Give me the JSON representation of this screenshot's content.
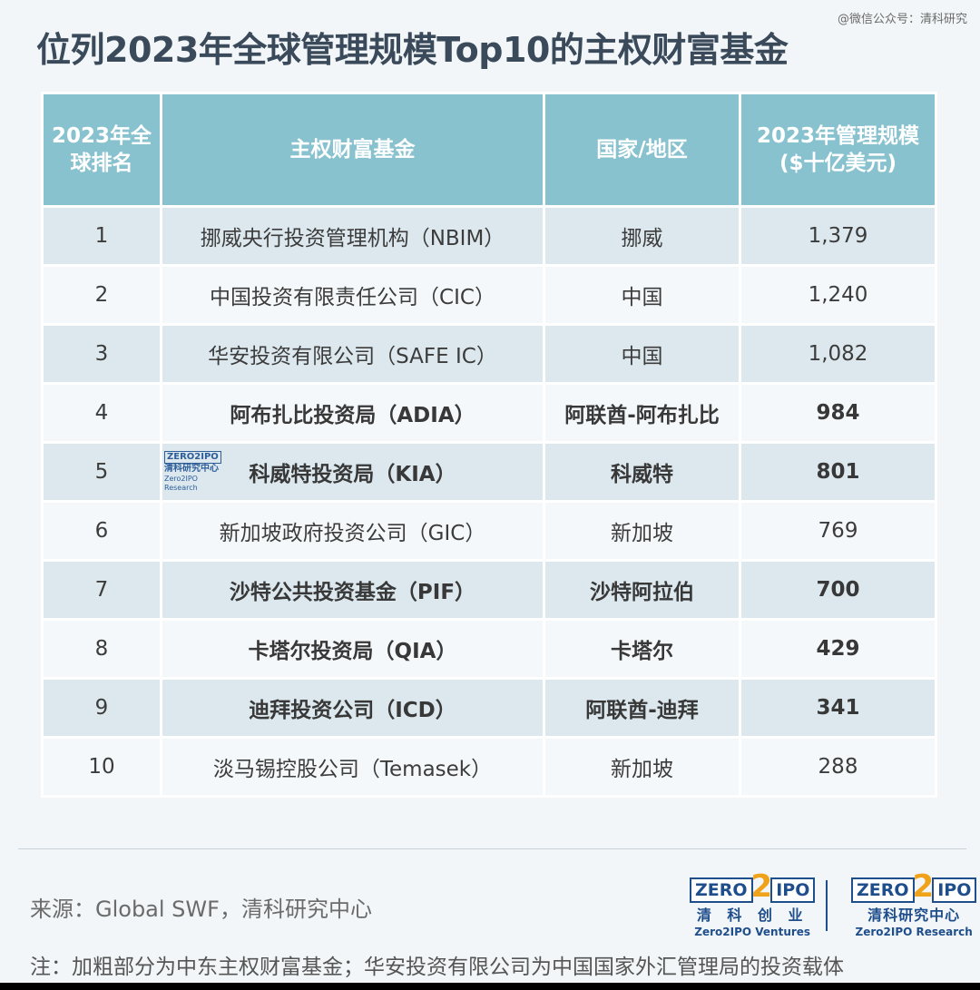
{
  "watermark": "@微信公众号：清科研究",
  "title": "位列2023年全球管理规模Top10的主权财富基金",
  "table": {
    "headers": [
      "2023年全\n球排名",
      "主权财富基金",
      "国家/地区",
      "2023年管理规模\n($十亿美元)"
    ],
    "rows": [
      {
        "rank": "1",
        "fund": "挪威央行投资管理机构（NBIM）",
        "region": "挪威",
        "aum": "1,379",
        "middle_east": false
      },
      {
        "rank": "2",
        "fund": "中国投资有限责任公司（CIC）",
        "region": "中国",
        "aum": "1,240",
        "middle_east": false
      },
      {
        "rank": "3",
        "fund": "华安投资有限公司（SAFE IC）",
        "region": "中国",
        "aum": "1,082",
        "middle_east": false
      },
      {
        "rank": "4",
        "fund": "阿布扎比投资局（ADIA）",
        "region": "阿联酋-阿布扎比",
        "aum": "984",
        "middle_east": true
      },
      {
        "rank": "5",
        "fund": "科威特投资局（KIA）",
        "region": "科威特",
        "aum": "801",
        "middle_east": true
      },
      {
        "rank": "6",
        "fund": "新加坡政府投资公司（GIC）",
        "region": "新加坡",
        "aum": "769",
        "middle_east": false
      },
      {
        "rank": "7",
        "fund": "沙特公共投资基金（PIF）",
        "region": "沙特阿拉伯",
        "aum": "700",
        "middle_east": true
      },
      {
        "rank": "8",
        "fund": "卡塔尔投资局（QIA）",
        "region": "卡塔尔",
        "aum": "429",
        "middle_east": true
      },
      {
        "rank": "9",
        "fund": "迪拜投资公司（ICD）",
        "region": "阿联酋-迪拜",
        "aum": "341",
        "middle_east": true
      },
      {
        "rank": "10",
        "fund": "淡马锡控股公司（Temasek）",
        "region": "新加坡",
        "aum": "288",
        "middle_east": false
      }
    ]
  },
  "watermark_logo": {
    "box": "ZERO2IPO",
    "cn": "清科研究中心",
    "en": "Zero2IPO Research"
  },
  "source": "来源：Global SWF，清科研究中心",
  "note": "注：加粗部分为中东主权财富基金；华安投资有限公司为中国国家外汇管理局的投资载体",
  "logos": [
    {
      "zero": "ZERO",
      "two": "2",
      "ipo": "IPO",
      "cn": "清 科 创 业",
      "en": "Zero2IPO Ventures"
    },
    {
      "zero": "ZERO",
      "two": "2",
      "ipo": "IPO",
      "cn": "清科研究中心",
      "en": "Zero2IPO Research"
    }
  ],
  "colors": {
    "header": "#89c2cf",
    "row_alt": "#dce8ee",
    "title": "#3a4a5a",
    "brand_blue": "#1f4e8c",
    "brand_orange": "#f0a21a"
  }
}
